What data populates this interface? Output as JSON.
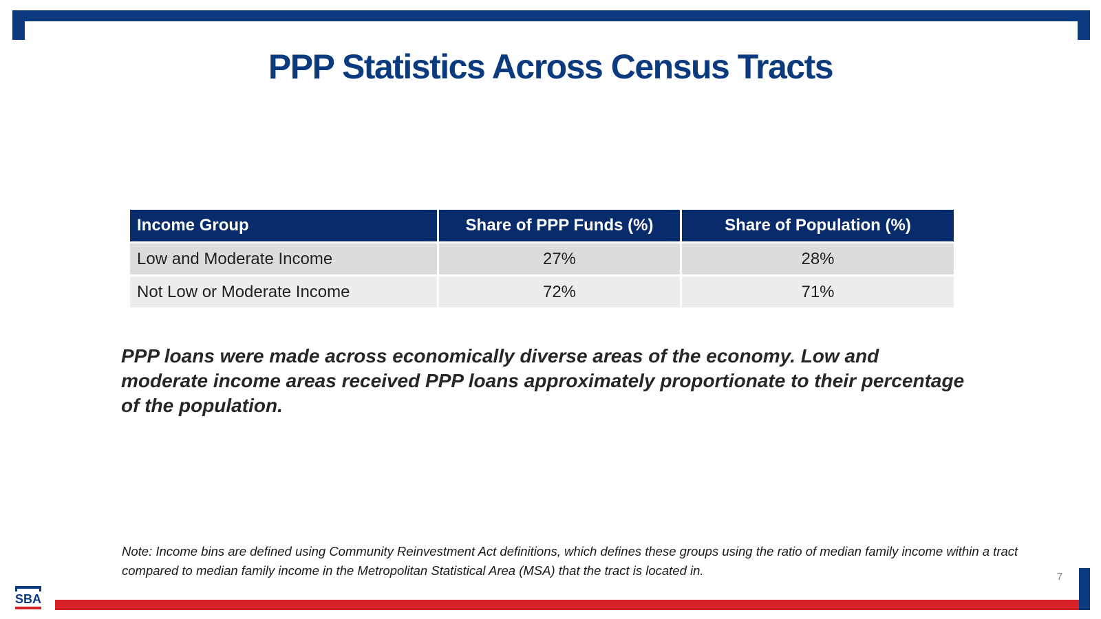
{
  "slide": {
    "title": "PPP Statistics Across Census Tracts",
    "page_number": "7",
    "logo_text": "SBA"
  },
  "table": {
    "headers": [
      "Income Group",
      "Share of PPP Funds (%)",
      "Share of Population (%)"
    ],
    "rows": [
      [
        "Low and Moderate Income",
        "27%",
        "28%"
      ],
      [
        "Not Low or Moderate Income",
        "72%",
        "71%"
      ]
    ]
  },
  "summary": "PPP loans were made across economically diverse areas of the economy.  Low and moderate income areas received PPP loans approximately proportionate to their percentage of the population.",
  "note": "Note: Income bins are defined using Community Reinvestment Act definitions, which defines these groups using the ratio of median family income within a tract compared to median family income in the Metropolitan Statistical Area (MSA) that the tract is located in.",
  "colors": {
    "brand_blue": "#0b3a7e",
    "header_navy": "#072b6b",
    "brand_red": "#d52128"
  }
}
